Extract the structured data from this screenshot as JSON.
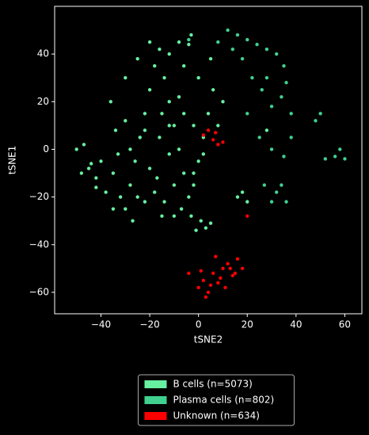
{
  "chart_data": {
    "type": "scatter",
    "xlabel": "tSNE2",
    "ylabel": "tSNE1",
    "xlim": [
      -59,
      67
    ],
    "ylim": [
      -69,
      60
    ],
    "xticks": [
      {
        "value": -40,
        "label": "−40"
      },
      {
        "value": -20,
        "label": "−20"
      },
      0,
      20,
      40,
      60
    ],
    "yticks": [
      {
        "value": -60,
        "label": "−60"
      },
      {
        "value": -40,
        "label": "−40"
      },
      {
        "value": -20,
        "label": "−20"
      },
      0,
      20,
      40
    ],
    "grid": false,
    "legend": "lower center",
    "series": [
      {
        "name": "B cells (n=5073)",
        "color": "#66f0a0",
        "x": [
          -50,
          -47,
          -44,
          -48,
          -42,
          -38,
          -35,
          -32,
          -30,
          -28,
          -26,
          -24,
          -22,
          -20,
          -18,
          -16,
          -14,
          -12,
          -10,
          -8,
          -6,
          -4,
          -2,
          0,
          2,
          4,
          6,
          -36,
          -34,
          -30,
          -25,
          -20,
          -12,
          -6,
          0,
          5,
          -8,
          -3,
          -40,
          -33,
          -27,
          -22,
          -17,
          -12,
          -7,
          -3,
          -15,
          -20,
          -25,
          -18,
          -14,
          -10,
          -28,
          -22,
          -16,
          -12,
          -6,
          -30,
          -15,
          -8,
          -2,
          2,
          8,
          10,
          1,
          3,
          -1,
          5,
          18,
          20,
          16,
          -2,
          -10,
          -35,
          -42,
          -45,
          -4,
          28
        ],
        "values": [
          0,
          2,
          -6,
          -10,
          -12,
          -18,
          -10,
          -20,
          -25,
          -15,
          -5,
          5,
          15,
          25,
          35,
          42,
          30,
          20,
          10,
          0,
          -10,
          -20,
          -15,
          -5,
          5,
          15,
          25,
          20,
          8,
          30,
          38,
          45,
          40,
          35,
          30,
          38,
          45,
          48,
          -5,
          -2,
          -30,
          -22,
          -12,
          -2,
          -25,
          -28,
          -28,
          -8,
          -20,
          -18,
          -22,
          -15,
          0,
          8,
          5,
          10,
          15,
          12,
          15,
          22,
          10,
          -2,
          10,
          20,
          -30,
          -33,
          -34,
          -31,
          -18,
          -22,
          -20,
          -10,
          -28,
          -25,
          -16,
          -8,
          44,
          8
        ]
      },
      {
        "name": "Plasma cells (n=802)",
        "color": "#40d090",
        "x": [
          12,
          16,
          20,
          24,
          28,
          32,
          35,
          36,
          34,
          30,
          26,
          22,
          18,
          14,
          20,
          25,
          30,
          35,
          38,
          27,
          32,
          36,
          30,
          34,
          48,
          50,
          52,
          56,
          58,
          60,
          -4,
          8,
          38,
          28
        ],
        "values": [
          50,
          48,
          46,
          44,
          42,
          40,
          35,
          28,
          22,
          18,
          25,
          30,
          38,
          42,
          15,
          5,
          0,
          -3,
          5,
          -15,
          -18,
          -22,
          -22,
          -15,
          12,
          15,
          -4,
          -3,
          0,
          -4,
          46,
          45,
          15,
          30
        ]
      },
      {
        "name": "Unknown (n=634)",
        "color": "#ff0000",
        "x": [
          2,
          4,
          6,
          8,
          10,
          7,
          0,
          2,
          4,
          6,
          8,
          10,
          12,
          14,
          16,
          3,
          5,
          9,
          11,
          13,
          15,
          -4,
          20,
          7,
          1,
          18
        ],
        "values": [
          6,
          8,
          4,
          2,
          3,
          7,
          -58,
          -55,
          -60,
          -52,
          -56,
          -50,
          -48,
          -53,
          -46,
          -62,
          -57,
          -54,
          -58,
          -50,
          -52,
          -52,
          -28,
          -45,
          -51,
          -50
        ]
      }
    ]
  }
}
